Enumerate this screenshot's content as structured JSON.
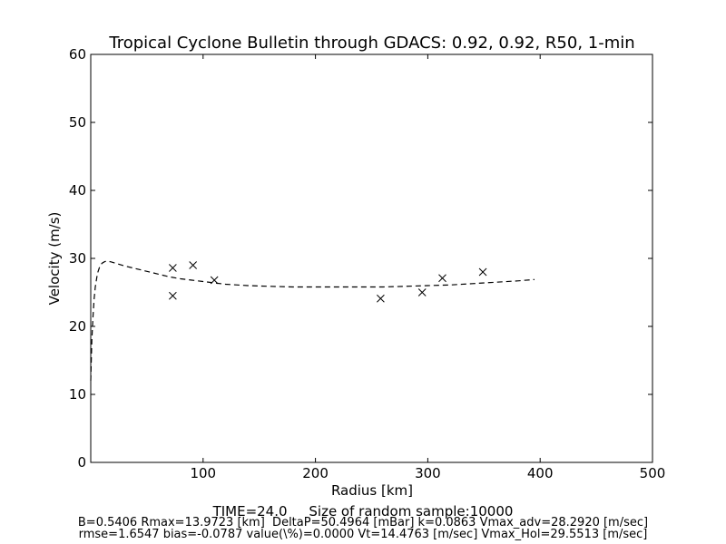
{
  "chart_data": {
    "type": "scatter",
    "title": "Tropical Cyclone Bulletin through GDACS: 0.92, 0.92, R50, 1-min",
    "xlabel": "Radius [km]",
    "ylabel": "Velocity (m/s)",
    "xlim": [
      0,
      500
    ],
    "ylim": [
      0,
      60
    ],
    "xticks": [
      "100",
      "200",
      "300",
      "400",
      "500"
    ],
    "yticks": [
      "0",
      "10",
      "20",
      "30",
      "40",
      "50",
      "60"
    ],
    "grid": false,
    "series": [
      {
        "style": "dashed-line",
        "color": "#000000",
        "x": [
          0,
          1,
          2,
          3,
          4,
          6,
          8,
          10,
          12,
          14,
          18,
          22,
          30,
          40,
          50,
          60,
          70,
          80,
          90,
          100,
          110,
          120,
          140,
          160,
          180,
          200,
          220,
          240,
          260,
          280,
          300,
          320,
          340,
          360,
          380,
          395
        ],
        "y": [
          12,
          18,
          21.5,
          24,
          25.8,
          27.8,
          28.8,
          29.3,
          29.5,
          29.6,
          29.5,
          29.3,
          28.9,
          28.5,
          28.1,
          27.7,
          27.3,
          27.0,
          26.8,
          26.6,
          26.4,
          26.2,
          26.0,
          25.9,
          25.8,
          25.8,
          25.8,
          25.8,
          25.8,
          25.9,
          26.0,
          26.1,
          26.3,
          26.5,
          26.7,
          26.9
        ]
      },
      {
        "style": "x-marker",
        "color": "#000000",
        "x": [
          73,
          73,
          91,
          110,
          258,
          295,
          313,
          349
        ],
        "y": [
          28.6,
          24.5,
          29.0,
          26.8,
          24.1,
          25.0,
          27.1,
          28.0
        ]
      }
    ]
  },
  "footer": {
    "line1": "TIME=24.0     Size of random sample:10000",
    "line2": "B=0.5406 Rmax=13.9723 [km]  DeltaP=50.4964 [mBar] k=0.0863 Vmax_adv=28.2920 [m/sec]",
    "line3": "rmse=1.6547 bias=-0.0787 value(\\%)=0.0000 Vt=14.4763 [m/sec] Vmax_Hol=29.5513 [m/sec]"
  }
}
